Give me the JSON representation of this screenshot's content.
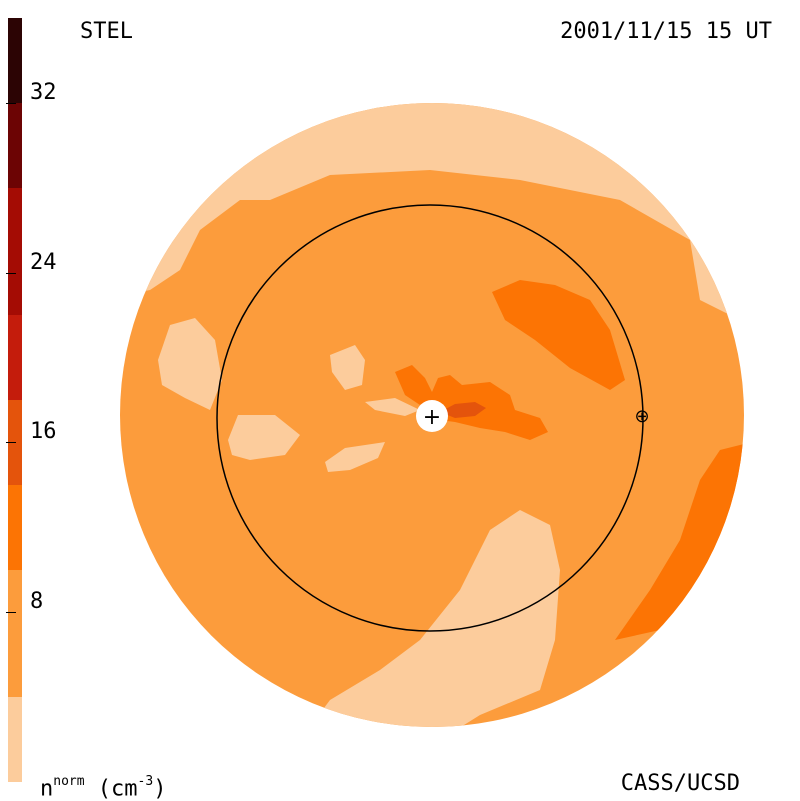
{
  "header": {
    "source": "STEL",
    "datetime": "2001/11/15 15 UT"
  },
  "footer": {
    "units_base": "n",
    "units_sup": "norm",
    "units_rest": " (cm",
    "units_exp": "-3",
    "units_close": ")",
    "credit": "CASS/UCSD"
  },
  "colorbar": {
    "min": 0,
    "max": 36,
    "levels": [
      {
        "from": 0,
        "to": 4,
        "color": "#fccc9c"
      },
      {
        "from": 4,
        "to": 10,
        "color": "#fc9c3c"
      },
      {
        "from": 10,
        "to": 14,
        "color": "#fc7404"
      },
      {
        "from": 14,
        "to": 18,
        "color": "#e4540c"
      },
      {
        "from": 18,
        "to": 22,
        "color": "#c41c0c"
      },
      {
        "from": 22,
        "to": 28,
        "color": "#a40c04"
      },
      {
        "from": 28,
        "to": 32,
        "color": "#6c0404"
      },
      {
        "from": 32,
        "to": 36,
        "color": "#2c0404"
      }
    ],
    "ticks": [
      "8",
      "16",
      "24",
      "32"
    ]
  },
  "colors": {
    "low": "#fccc9c",
    "base": "#fc9c3c",
    "mid": "#fc7404",
    "high": "#e4540c",
    "line": "#000000"
  },
  "markers": {
    "sun": "+",
    "earth": "⊕"
  }
}
